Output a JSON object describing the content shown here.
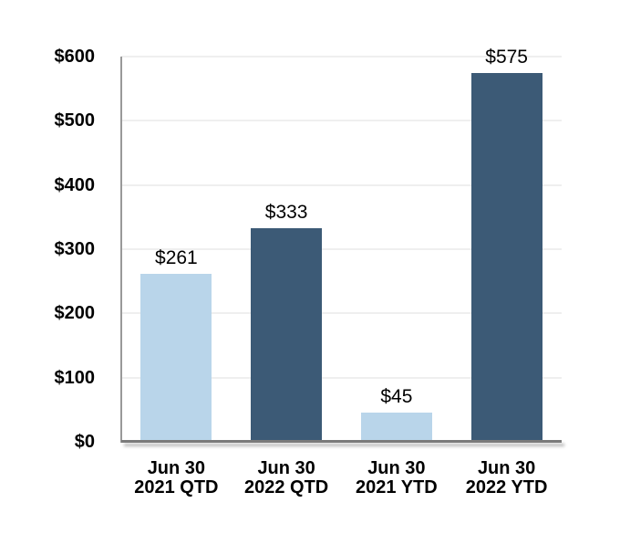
{
  "chart_data": {
    "type": "bar",
    "title": "",
    "categories": [
      {
        "line1": "Jun 30",
        "line2": "2021 QTD"
      },
      {
        "line1": "Jun 30",
        "line2": "2022 QTD"
      },
      {
        "line1": "Jun 30",
        "line2": "2021 YTD"
      },
      {
        "line1": "Jun 30",
        "line2": "2022 YTD"
      }
    ],
    "values": [
      261,
      333,
      45,
      575
    ],
    "data_labels": [
      "$261",
      "$333",
      "$45",
      "$575"
    ],
    "bar_colors": [
      "#B9D5EA",
      "#3C5A76",
      "#B9D5EA",
      "#3C5A76"
    ],
    "y_axis": {
      "min": 0,
      "max": 600,
      "step": 100,
      "tick_labels": [
        "$0",
        "$100",
        "$200",
        "$300",
        "$400",
        "$500",
        "$600"
      ]
    },
    "grid": true,
    "legend": null
  },
  "colors": {
    "light_blue": "#B9D5EA",
    "dark_blue": "#3C5A76",
    "gridline": "#EFEFEF",
    "axis_vertical": "#999999",
    "axis_horizontal": "#7B7B7B",
    "label_text": "#000000",
    "background": "#FFFFFF"
  }
}
